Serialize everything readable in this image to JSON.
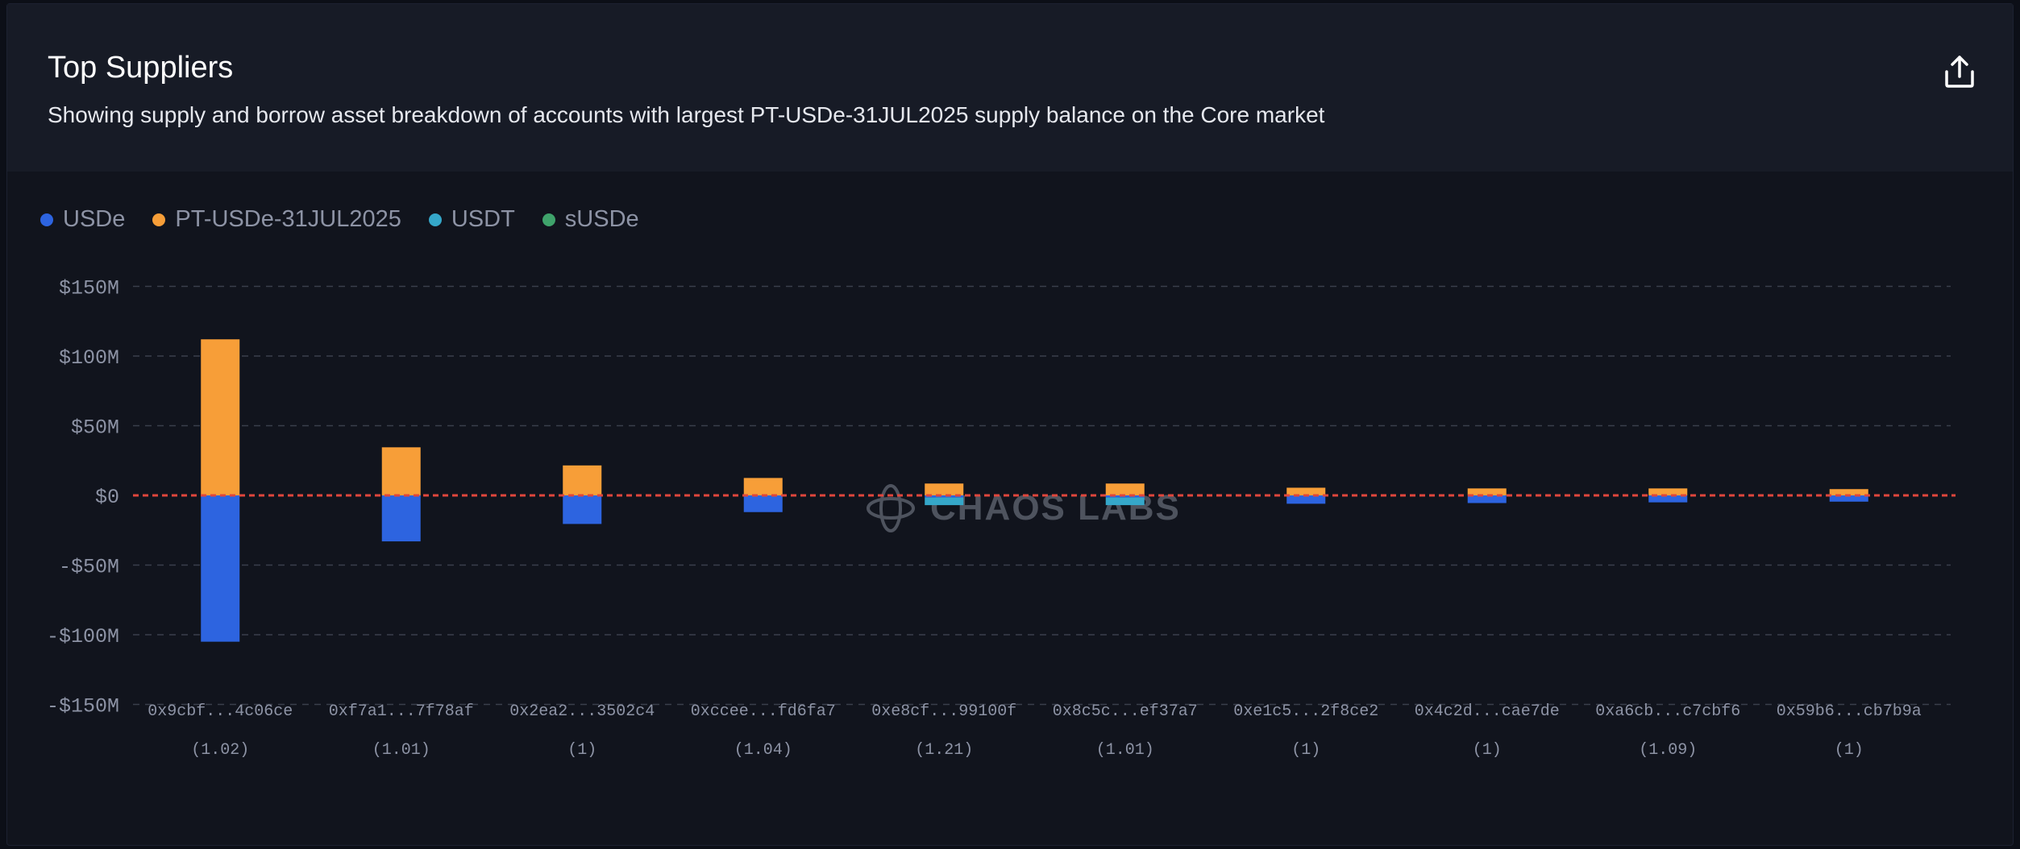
{
  "header": {
    "title": "Top Suppliers",
    "subtitle": "Showing supply and borrow asset breakdown of accounts with largest PT-USDe-31JUL2025 supply balance on the Core market"
  },
  "legend": [
    {
      "name": "USDe",
      "color": "#2d64e0"
    },
    {
      "name": "PT-USDe-31JUL2025",
      "color": "#f79e38"
    },
    {
      "name": "USDT",
      "color": "#35a7c9"
    },
    {
      "name": "sUSDe",
      "color": "#3fa36b"
    }
  ],
  "watermark": "CHAOS LABS",
  "chart_data": {
    "type": "bar",
    "stacked": true,
    "categories": [
      "0x9cbf...4c06ce",
      "0xf7a1...7f78af",
      "0x2ea2...3502c4",
      "0xccee...fd6fa7",
      "0xe8cf...99100f",
      "0x8c5c...ef37a7",
      "0xe1c5...2f8ce2",
      "0x4c2d...cae7de",
      "0xa6cb...c7cbf6",
      "0x59b6...cb7b9a"
    ],
    "category_sublabels": [
      "(1.02)",
      "(1.01)",
      "(1)",
      "(1.04)",
      "(1.21)",
      "(1.01)",
      "(1)",
      "(1)",
      "(1.09)",
      "(1)"
    ],
    "series": [
      {
        "name": "USDe",
        "color": "#2d64e0",
        "values": [
          -105,
          -33,
          -20.5,
          -12,
          -1.5,
          -1.5,
          -6,
          -5.5,
          -5,
          -4.5
        ]
      },
      {
        "name": "PT-USDe-31JUL2025",
        "color": "#f79e38",
        "values": [
          112,
          34.5,
          21.5,
          12.5,
          8.5,
          8.5,
          5.5,
          5,
          5,
          4.5
        ]
      },
      {
        "name": "USDT",
        "color": "#35a7c9",
        "values": [
          0,
          0,
          0,
          0,
          -5.5,
          -5.5,
          0,
          0,
          0,
          0
        ]
      },
      {
        "name": "sUSDe",
        "color": "#3fa36b",
        "values": [
          0,
          0,
          0,
          0,
          0,
          0,
          0,
          0,
          0,
          0
        ]
      }
    ],
    "yticks": [
      150,
      100,
      50,
      0,
      -50,
      -100,
      -150
    ],
    "ytick_labels": [
      "$150M",
      "$100M",
      "$50M",
      "$0",
      "-$50M",
      "-$100M",
      "-$150M"
    ],
    "ylim": [
      -150,
      150
    ],
    "grid": true,
    "zero_line_color": "#e0463c",
    "legend_position": "top-left"
  }
}
